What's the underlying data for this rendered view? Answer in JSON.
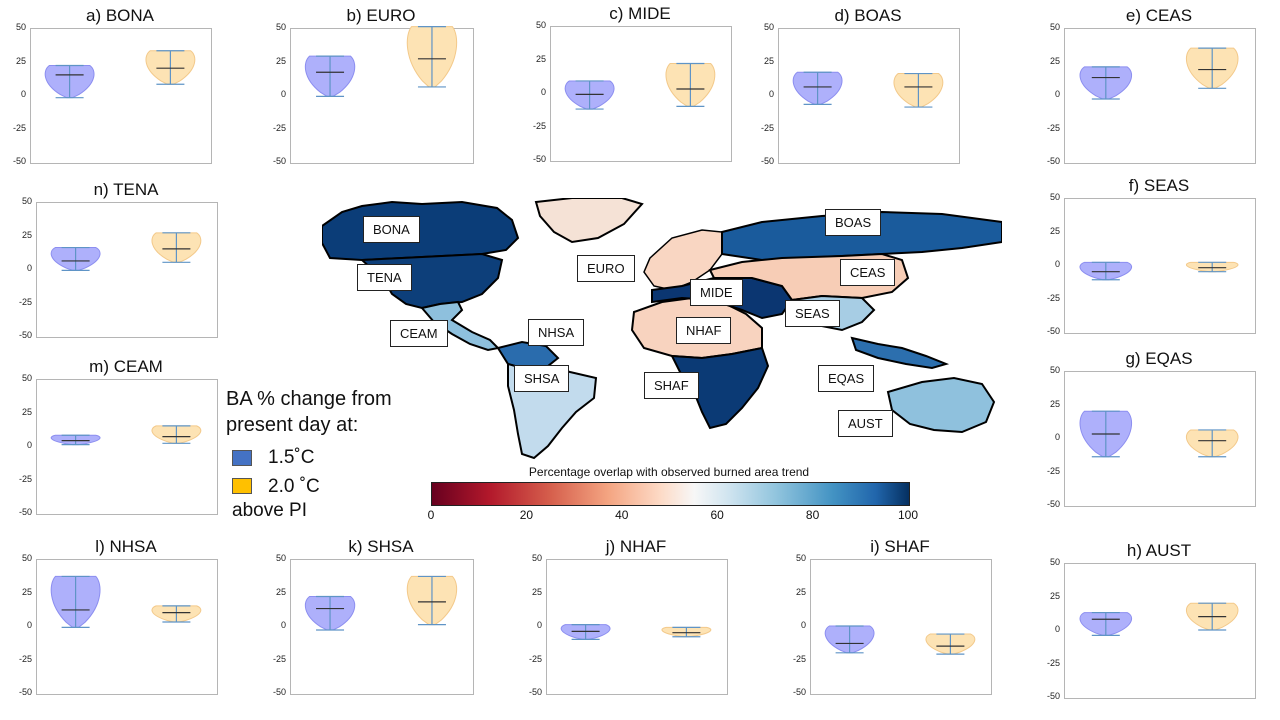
{
  "legend": {
    "title_line1": "BA % change from",
    "title_line2": "present day at:",
    "item1": "1.5˚C",
    "item2": "2.0 ˚C",
    "footer": "above PI",
    "color1": "#4472c4",
    "color2": "#ffc000"
  },
  "colorbar": {
    "title": "Percentage overlap with observed burned area trend",
    "ticks": [
      "0",
      "20",
      "40",
      "60",
      "80",
      "100"
    ],
    "colormap": "RdBu"
  },
  "map_labels": [
    "BONA",
    "TENA",
    "CEAM",
    "NHSA",
    "SHSA",
    "EURO",
    "MIDE",
    "NHAF",
    "SHAF",
    "BOAS",
    "CEAS",
    "SEAS",
    "EQAS",
    "AUST"
  ],
  "chart_data": [
    {
      "type": "violin",
      "title": "a) BONA",
      "ylim": [
        -50,
        50
      ],
      "yticks": [
        "50",
        "25",
        "0",
        "-25",
        "-50"
      ],
      "series": [
        {
          "name": "1.5˚C",
          "min": -2,
          "median": 15,
          "max": 22
        },
        {
          "name": "2.0 ˚C",
          "min": 8,
          "median": 20,
          "max": 33
        }
      ]
    },
    {
      "type": "violin",
      "title": "b) EURO",
      "ylim": [
        -50,
        50
      ],
      "yticks": [
        "50",
        "25",
        "0",
        "-25",
        "-50"
      ],
      "series": [
        {
          "name": "1.5˚C",
          "min": -1,
          "median": 17,
          "max": 29
        },
        {
          "name": "2.0 ˚C",
          "min": 6,
          "median": 27,
          "max": 51
        }
      ]
    },
    {
      "type": "violin",
      "title": "c) MIDE",
      "ylim": [
        -50,
        50
      ],
      "yticks": [
        "50",
        "25",
        "0",
        "-25",
        "-50"
      ],
      "series": [
        {
          "name": "1.5˚C",
          "min": -12,
          "median": -1,
          "max": 9
        },
        {
          "name": "2.0 ˚C",
          "min": -10,
          "median": 3,
          "max": 22
        }
      ]
    },
    {
      "type": "violin",
      "title": "d) BOAS",
      "ylim": [
        -50,
        50
      ],
      "yticks": [
        "50",
        "25",
        "0",
        "-25",
        "-50"
      ],
      "series": [
        {
          "name": "1.5˚C",
          "min": -7,
          "median": 6,
          "max": 17
        },
        {
          "name": "2.0 ˚C",
          "min": -9,
          "median": 6,
          "max": 16
        }
      ]
    },
    {
      "type": "violin",
      "title": "e) CEAS",
      "ylim": [
        -50,
        50
      ],
      "yticks": [
        "50",
        "25",
        "0",
        "-25",
        "-50"
      ],
      "series": [
        {
          "name": "1.5˚C",
          "min": -3,
          "median": 13,
          "max": 21
        },
        {
          "name": "2.0 ˚C",
          "min": 5,
          "median": 19,
          "max": 35
        }
      ]
    },
    {
      "type": "violin",
      "title": "f) SEAS",
      "ylim": [
        -50,
        50
      ],
      "yticks": [
        "50",
        "25",
        "0",
        "-25",
        "-50"
      ],
      "series": [
        {
          "name": "1.5˚C",
          "min": -11,
          "median": -5,
          "max": 2
        },
        {
          "name": "2.0 ˚C",
          "min": -5,
          "median": -2,
          "max": 2
        }
      ]
    },
    {
      "type": "violin",
      "title": "g) EQAS",
      "ylim": [
        -50,
        50
      ],
      "yticks": [
        "50",
        "25",
        "0",
        "-25",
        "-50"
      ],
      "series": [
        {
          "name": "1.5˚C",
          "min": -14,
          "median": 3,
          "max": 20
        },
        {
          "name": "2.0 ˚C",
          "min": -14,
          "median": -2,
          "max": 6
        }
      ]
    },
    {
      "type": "violin",
      "title": "h) AUST",
      "ylim": [
        -50,
        50
      ],
      "yticks": [
        "50",
        "25",
        "0",
        "-25",
        "-50"
      ],
      "series": [
        {
          "name": "1.5˚C",
          "min": -4,
          "median": 8,
          "max": 13
        },
        {
          "name": "2.0 ˚C",
          "min": 0,
          "median": 10,
          "max": 20
        }
      ]
    },
    {
      "type": "violin",
      "title": "i) SHAF",
      "ylim": [
        -50,
        50
      ],
      "yticks": [
        "50",
        "25",
        "0",
        "-25",
        "-50"
      ],
      "series": [
        {
          "name": "1.5˚C",
          "min": -20,
          "median": -13,
          "max": 0
        },
        {
          "name": "2.0 ˚C",
          "min": -21,
          "median": -15,
          "max": -6
        }
      ]
    },
    {
      "type": "violin",
      "title": "j) NHAF",
      "ylim": [
        -50,
        50
      ],
      "yticks": [
        "50",
        "25",
        "0",
        "-25",
        "-50"
      ],
      "series": [
        {
          "name": "1.5˚C",
          "min": -10,
          "median": -4,
          "max": 1
        },
        {
          "name": "2.0 ˚C",
          "min": -8,
          "median": -5,
          "max": -1
        }
      ]
    },
    {
      "type": "violin",
      "title": "k) SHSA",
      "ylim": [
        -50,
        50
      ],
      "yticks": [
        "50",
        "25",
        "0",
        "-25",
        "-50"
      ],
      "series": [
        {
          "name": "1.5˚C",
          "min": -3,
          "median": 13,
          "max": 22
        },
        {
          "name": "2.0 ˚C",
          "min": 1,
          "median": 18,
          "max": 37
        }
      ]
    },
    {
      "type": "violin",
      "title": "l) NHSA",
      "ylim": [
        -50,
        50
      ],
      "yticks": [
        "50",
        "25",
        "0",
        "-25",
        "-50"
      ],
      "series": [
        {
          "name": "1.5˚C",
          "min": -1,
          "median": 12,
          "max": 37
        },
        {
          "name": "2.0 ˚C",
          "min": 3,
          "median": 10,
          "max": 15
        }
      ]
    },
    {
      "type": "violin",
      "title": "m) CEAM",
      "ylim": [
        -50,
        50
      ],
      "yticks": [
        "50",
        "25",
        "0",
        "-25",
        "-50"
      ],
      "series": [
        {
          "name": "1.5˚C",
          "min": 1,
          "median": 4,
          "max": 8
        },
        {
          "name": "2.0 ˚C",
          "min": 2,
          "median": 7,
          "max": 15
        }
      ]
    },
    {
      "type": "violin",
      "title": "n) TENA",
      "ylim": [
        -50,
        50
      ],
      "yticks": [
        "50",
        "25",
        "0",
        "-25",
        "-50"
      ],
      "series": [
        {
          "name": "1.5˚C",
          "min": -1,
          "median": 6,
          "max": 16
        },
        {
          "name": "2.0 ˚C",
          "min": 5,
          "median": 15,
          "max": 27
        }
      ]
    }
  ]
}
